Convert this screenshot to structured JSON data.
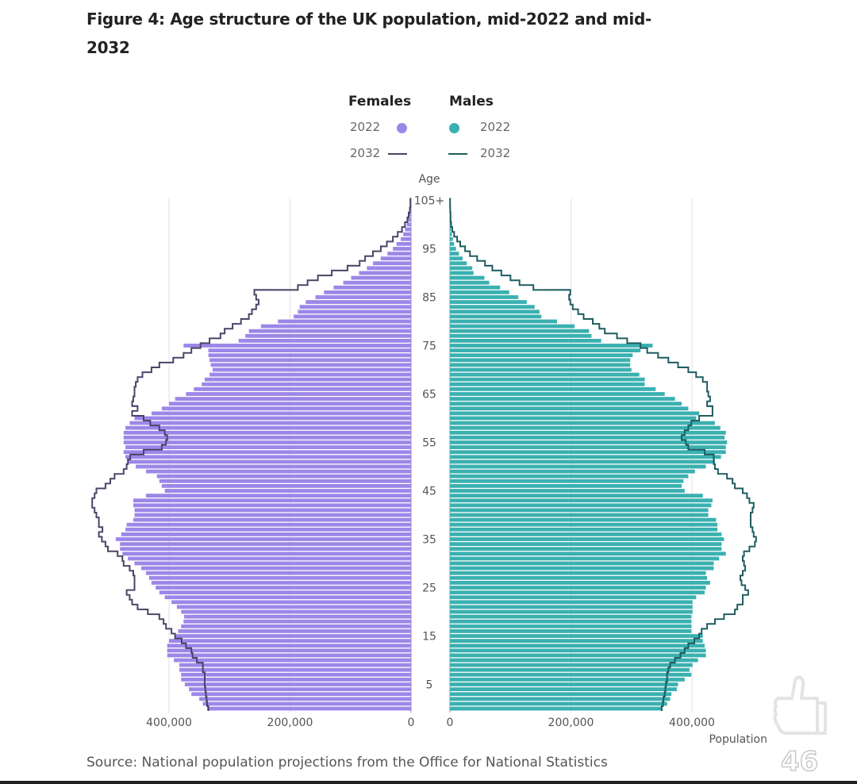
{
  "chart_data": {
    "type": "bar",
    "subtype": "population-pyramid",
    "title": "Figure 4: Age structure of the UK population, mid-2022 and mid-2032",
    "ylabel": "Age",
    "xlabel": "Population",
    "value_scale": 1000,
    "age_ticks": [
      "5",
      "15",
      "25",
      "35",
      "45",
      "55",
      "65",
      "75",
      "85",
      "95",
      "105+"
    ],
    "x_ticks_females": [
      "400,000",
      "200,000",
      "0"
    ],
    "x_ticks_males": [
      "0",
      "200,000",
      "400,000"
    ],
    "xlim": [
      0,
      500000
    ],
    "legend": {
      "females_title": "Females",
      "males_title": "Males",
      "female_2022": "2022",
      "female_2032": "2032",
      "male_2022": "2022",
      "male_2032": "2032",
      "placement": "top-center"
    },
    "colors": {
      "female_bar": "#9c87e8",
      "female_line": "#4b4468",
      "male_bar": "#3bb0b0",
      "male_line": "#1f5c60",
      "grid": "#e2e2e2",
      "axis": "#9a9a9a"
    },
    "ages": "0-105+",
    "series": [
      {
        "name": "Females 2022",
        "kind": "bar",
        "side": "left",
        "values": [
          337,
          344,
          350,
          363,
          367,
          374,
          380,
          380,
          383,
          383,
          392,
          403,
          403,
          403,
          400,
          390,
          385,
          380,
          376,
          375,
          380,
          387,
          396,
          407,
          416,
          422,
          429,
          433,
          438,
          446,
          457,
          468,
          477,
          481,
          481,
          488,
          479,
          472,
          470,
          459,
          457,
          457,
          459,
          459,
          438,
          407,
          412,
          416,
          420,
          438,
          455,
          468,
          472,
          475,
          472,
          475,
          475,
          475,
          472,
          465,
          457,
          429,
          412,
          400,
          390,
          372,
          359,
          346,
          341,
          333,
          328,
          331,
          333,
          335,
          335,
          376,
          285,
          274,
          268,
          248,
          220,
          194,
          187,
          184,
          174,
          158,
          144,
          128,
          112,
          99,
          86,
          73,
          63,
          50,
          39,
          30,
          24,
          17,
          13,
          10,
          7,
          5,
          3,
          2,
          1,
          1
        ]
      },
      {
        "name": "Females 2032",
        "kind": "line",
        "side": "left",
        "values": [
          335,
          337,
          338,
          339,
          340,
          341,
          341,
          341,
          344,
          344,
          354,
          361,
          363,
          372,
          379,
          390,
          396,
          405,
          409,
          416,
          435,
          452,
          461,
          465,
          470,
          457,
          457,
          457,
          459,
          465,
          475,
          477,
          485,
          501,
          505,
          511,
          516,
          510,
          516,
          516,
          520,
          523,
          527,
          527,
          523,
          520,
          505,
          497,
          490,
          475,
          470,
          468,
          464,
          442,
          412,
          405,
          403,
          407,
          416,
          431,
          442,
          461,
          452,
          461,
          459,
          457,
          457,
          455,
          452,
          444,
          429,
          416,
          393,
          376,
          363,
          348,
          333,
          315,
          308,
          295,
          281,
          268,
          263,
          256,
          252,
          256,
          259,
          187,
          171,
          154,
          131,
          105,
          85,
          76,
          63,
          50,
          40,
          30,
          22,
          15,
          10,
          6,
          4,
          2,
          1,
          1
        ]
      },
      {
        "name": "Males 2022",
        "kind": "bar",
        "side": "right",
        "values": [
          350,
          359,
          364,
          366,
          375,
          377,
          388,
          399,
          396,
          401,
          410,
          423,
          423,
          421,
          418,
          418,
          399,
          399,
          399,
          399,
          401,
          401,
          401,
          407,
          421,
          423,
          430,
          425,
          423,
          436,
          436,
          445,
          456,
          449,
          449,
          453,
          449,
          442,
          442,
          440,
          427,
          427,
          432,
          434,
          418,
          388,
          383,
          386,
          394,
          405,
          423,
          438,
          448,
          456,
          456,
          458,
          454,
          456,
          447,
          438,
          407,
          412,
          394,
          383,
          372,
          355,
          340,
          322,
          322,
          313,
          300,
          298,
          298,
          302,
          315,
          335,
          250,
          234,
          230,
          206,
          177,
          151,
          148,
          140,
          127,
          113,
          98,
          83,
          65,
          57,
          39,
          37,
          28,
          21,
          15,
          10,
          7,
          5,
          3,
          2,
          1,
          1,
          0.5,
          0.3,
          0.2,
          0.2
        ]
      },
      {
        "name": "Males 2032",
        "kind": "line",
        "side": "right",
        "values": [
          350,
          352,
          353,
          355,
          356,
          357,
          359,
          359,
          361,
          364,
          372,
          381,
          388,
          394,
          404,
          412,
          416,
          425,
          438,
          453,
          471,
          475,
          484,
          484,
          493,
          488,
          482,
          480,
          484,
          488,
          486,
          484,
          486,
          495,
          504,
          506,
          502,
          500,
          497,
          497,
          497,
          500,
          502,
          495,
          491,
          484,
          471,
          467,
          458,
          443,
          438,
          436,
          436,
          421,
          394,
          390,
          383,
          388,
          394,
          399,
          412,
          434,
          434,
          425,
          430,
          427,
          425,
          425,
          418,
          407,
          394,
          377,
          361,
          344,
          326,
          315,
          293,
          276,
          256,
          247,
          236,
          221,
          212,
          203,
          199,
          197,
          199,
          138,
          115,
          100,
          85,
          70,
          58,
          45,
          33,
          25,
          17,
          12,
          7,
          4,
          2,
          1,
          1,
          0.5,
          0.3,
          0.2
        ]
      }
    ]
  },
  "source": "Source: National population projections from the Office for National Statistics",
  "overlay": {
    "likes_icon": "thumbs-up-icon",
    "likes_count": "46"
  }
}
